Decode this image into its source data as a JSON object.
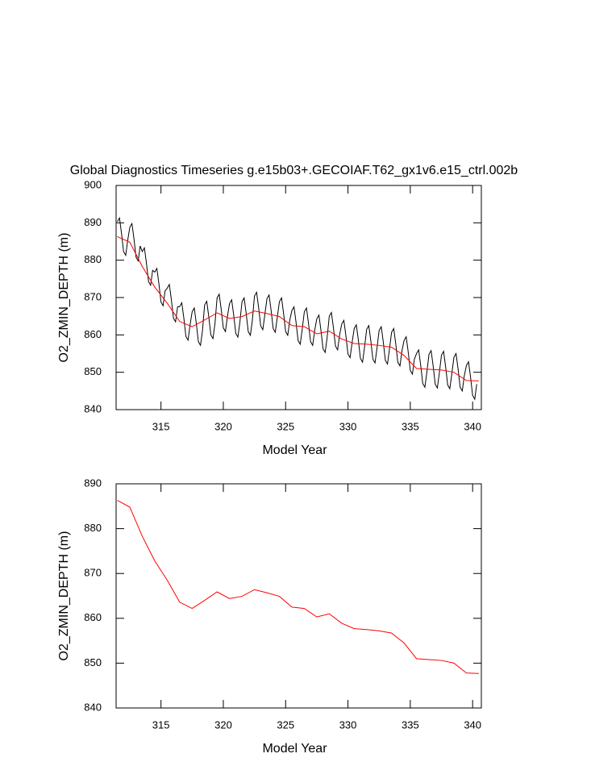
{
  "chart_data": [
    {
      "type": "line",
      "title": "Global Diagnostics Timeseries g.e15b03+.GECOIAF.T62_gx1v6.e15_ctrl.002b",
      "x_label": "Model Year",
      "y_label": "O2_ZMIN_DEPTH (m)",
      "xlim": [
        311.4,
        340.7
      ],
      "ylim": [
        840,
        900
      ],
      "xticks": [
        315,
        320,
        325,
        330,
        335,
        340
      ],
      "yticks": [
        840,
        850,
        860,
        870,
        880,
        890,
        900
      ],
      "series": [
        {
          "color": "#000000",
          "x": [
            311.5,
            311.67,
            311.83,
            312,
            312.17,
            312.33,
            312.5,
            312.67,
            312.83,
            313,
            313.17,
            313.33,
            313.5,
            313.67,
            313.83,
            314,
            314.17,
            314.33,
            314.5,
            314.67,
            314.83,
            315,
            315.17,
            315.33,
            315.5,
            315.67,
            315.83,
            316,
            316.17,
            316.33,
            316.5,
            316.67,
            316.83,
            317,
            317.17,
            317.33,
            317.5,
            317.67,
            317.83,
            318,
            318.17,
            318.33,
            318.5,
            318.67,
            318.83,
            319,
            319.17,
            319.33,
            319.5,
            319.67,
            319.83,
            320,
            320.17,
            320.33,
            320.5,
            320.67,
            320.83,
            321,
            321.17,
            321.33,
            321.5,
            321.67,
            321.83,
            322,
            322.17,
            322.33,
            322.5,
            322.67,
            322.83,
            323,
            323.17,
            323.33,
            323.5,
            323.67,
            323.83,
            324,
            324.17,
            324.33,
            324.5,
            324.67,
            324.83,
            325,
            325.17,
            325.33,
            325.5,
            325.67,
            325.83,
            326,
            326.17,
            326.33,
            326.5,
            326.67,
            326.83,
            327,
            327.17,
            327.33,
            327.5,
            327.67,
            327.83,
            328,
            328.17,
            328.33,
            328.5,
            328.67,
            328.83,
            329,
            329.17,
            329.33,
            329.5,
            329.67,
            329.83,
            330,
            330.17,
            330.33,
            330.5,
            330.67,
            330.83,
            331,
            331.17,
            331.33,
            331.5,
            331.67,
            331.83,
            332,
            332.17,
            332.33,
            332.5,
            332.67,
            332.83,
            333,
            333.17,
            333.33,
            333.5,
            333.67,
            333.83,
            334,
            334.17,
            334.33,
            334.5,
            334.67,
            334.83,
            335,
            335.17,
            335.33,
            335.5,
            335.67,
            335.83,
            336,
            336.17,
            336.33,
            336.5,
            336.67,
            336.83,
            337,
            337.17,
            337.33,
            337.5,
            337.67,
            337.83,
            338,
            338.17,
            338.33,
            338.5,
            338.67,
            338.83,
            339,
            339.17,
            339.33,
            339.5,
            339.67,
            339.83,
            340,
            340.17,
            340.33
          ],
          "values": [
            890.3,
            891.3,
            887.3,
            882.3,
            881.3,
            885.3,
            888.8,
            889.8,
            885.8,
            880.8,
            879.8,
            883.8,
            882.3,
            883.3,
            879.3,
            874.3,
            873.3,
            877.3,
            876.8,
            877.8,
            873.8,
            868.8,
            867.8,
            871.8,
            872.5,
            873.5,
            869.5,
            864.5,
            863.5,
            867.5,
            867.6,
            868.6,
            864.6,
            859.6,
            858.6,
            862.6,
            866.2,
            867.2,
            863.2,
            858.2,
            857.2,
            861.2,
            868,
            869,
            865,
            860,
            859,
            863,
            869.9,
            870.9,
            866.9,
            861.9,
            860.9,
            864.9,
            868.4,
            869.4,
            865.4,
            860.4,
            859.4,
            863.4,
            868.9,
            869.9,
            865.9,
            860.9,
            859.9,
            863.9,
            870.4,
            871.4,
            867.4,
            862.4,
            861.4,
            865.4,
            869.7,
            870.7,
            866.7,
            861.7,
            860.7,
            864.7,
            868.9,
            869.9,
            865.9,
            860.9,
            859.9,
            863.9,
            866.5,
            867.5,
            863.5,
            858.5,
            857.5,
            861.5,
            866.2,
            867.2,
            863.2,
            858.2,
            857.2,
            861.2,
            864.3,
            865.3,
            861.3,
            856.3,
            855.3,
            859.3,
            865,
            866,
            862,
            857,
            856,
            860,
            862.9,
            863.9,
            859.9,
            854.9,
            853.9,
            857.9,
            861.7,
            862.7,
            858.7,
            853.7,
            852.7,
            856.7,
            861.5,
            862.5,
            858.5,
            853.5,
            852.5,
            856.5,
            861.2,
            862.2,
            858.2,
            853.2,
            852.2,
            856.2,
            860.7,
            861.7,
            857.7,
            852.7,
            851.7,
            855.7,
            858.5,
            859.5,
            855.5,
            850.5,
            849.5,
            853.5,
            855,
            856,
            852,
            847,
            846,
            850,
            854.8,
            855.8,
            851.8,
            846.8,
            845.8,
            849.8,
            854.6,
            855.6,
            851.6,
            846.6,
            845.6,
            849.6,
            854,
            855,
            851,
            846,
            845,
            849,
            851.8,
            852.8,
            848.8,
            843.8,
            842.8,
            846.8
          ]
        },
        {
          "color": "#ff0000",
          "x": [
            311.5,
            312.5,
            313.5,
            314.5,
            315.5,
            316.5,
            317.5,
            318.5,
            319.5,
            320.5,
            321.5,
            322.5,
            323.5,
            324.5,
            325.5,
            326.5,
            327.5,
            328.5,
            329.5,
            330.5,
            331.5,
            332.5,
            333.5,
            334.5,
            335.5,
            336.5,
            337.5,
            338.5,
            339.5,
            340.5
          ],
          "values": [
            886.3,
            884.8,
            878.3,
            872.8,
            868.5,
            863.6,
            862.2,
            864.0,
            865.9,
            864.4,
            864.9,
            866.4,
            865.7,
            864.9,
            862.5,
            862.2,
            860.3,
            861.0,
            858.9,
            857.7,
            857.5,
            857.2,
            856.7,
            854.5,
            851.0,
            850.8,
            850.6,
            850.0,
            847.8,
            847.7
          ]
        }
      ]
    },
    {
      "type": "line",
      "x_label": "Model Year",
      "y_label": "O2_ZMIN_DEPTH (m)",
      "xlim": [
        311.4,
        340.7
      ],
      "ylim": [
        840,
        890
      ],
      "xticks": [
        315,
        320,
        325,
        330,
        335,
        340
      ],
      "yticks": [
        840,
        850,
        860,
        870,
        880,
        890
      ],
      "series": [
        {
          "color": "#ff0000",
          "x": [
            311.5,
            312.5,
            313.5,
            314.5,
            315.5,
            316.5,
            317.5,
            318.5,
            319.5,
            320.5,
            321.5,
            322.5,
            323.5,
            324.5,
            325.5,
            326.5,
            327.5,
            328.5,
            329.5,
            330.5,
            331.5,
            332.5,
            333.5,
            334.5,
            335.5,
            336.5,
            337.5,
            338.5,
            339.5,
            340.5
          ],
          "values": [
            886.3,
            884.8,
            878.3,
            872.8,
            868.5,
            863.6,
            862.2,
            864.0,
            865.9,
            864.4,
            864.9,
            866.4,
            865.7,
            864.9,
            862.5,
            862.2,
            860.3,
            861.0,
            858.9,
            857.7,
            857.5,
            857.2,
            856.7,
            854.5,
            851.0,
            850.8,
            850.6,
            850.0,
            847.8,
            847.7
          ]
        }
      ]
    }
  ]
}
